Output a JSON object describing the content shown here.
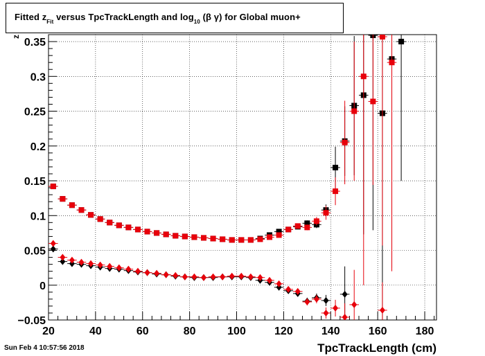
{
  "title": {
    "prefix": "Fitted  z",
    "sub1": "Fit",
    "middle": "  versus TpcTrackLength and log",
    "sub2": "10",
    "suffix": " (β γ) for Global muon+"
  },
  "timestamp": "Sun Feb  4 10:57:56 2018",
  "chart_data": {
    "type": "scatter",
    "xlabel": "TpcTrackLength (cm)",
    "ylabel": "z",
    "xlim": [
      20,
      185
    ],
    "ylim": [
      -0.05,
      0.36
    ],
    "xticks": [
      20,
      40,
      60,
      80,
      100,
      120,
      140,
      160,
      180
    ],
    "yticks": [
      -0.05,
      0,
      0.05,
      0.1,
      0.15,
      0.2,
      0.25,
      0.3,
      0.35
    ],
    "ytick_labels": [
      "−0.05",
      "0",
      "0.05",
      "0.1",
      "0.15",
      "0.2",
      "0.25",
      "0.3",
      "0.35"
    ],
    "grid": true,
    "series": [
      {
        "marker": "square",
        "color": "#000000",
        "x": [
          22,
          26,
          30,
          34,
          38,
          42,
          46,
          50,
          54,
          58,
          62,
          66,
          70,
          74,
          78,
          82,
          86,
          90,
          94,
          98,
          102,
          106,
          110,
          114,
          118,
          122,
          126,
          130,
          134,
          138,
          142,
          146,
          150,
          154,
          158,
          162,
          166,
          170
        ],
        "y": [
          0.142,
          0.124,
          0.115,
          0.108,
          0.101,
          0.095,
          0.09,
          0.086,
          0.083,
          0.08,
          0.077,
          0.075,
          0.073,
          0.071,
          0.07,
          0.069,
          0.068,
          0.067,
          0.066,
          0.065,
          0.065,
          0.065,
          0.067,
          0.072,
          0.077,
          0.08,
          0.084,
          0.089,
          0.087,
          0.108,
          0.169,
          0.207,
          0.258,
          0.273,
          0.359,
          0.247,
          0.325,
          0.35
        ],
        "err": [
          0.003,
          0.003,
          0.003,
          0.003,
          0.002,
          0.002,
          0.002,
          0.002,
          0.002,
          0.002,
          0.002,
          0.002,
          0.002,
          0.002,
          0.002,
          0.002,
          0.002,
          0.002,
          0.002,
          0.002,
          0.002,
          0.002,
          0.002,
          0.002,
          0.003,
          0.003,
          0.003,
          0.004,
          0.005,
          0.008,
          0.03,
          0.05,
          0.1,
          0.2,
          0.28,
          0.35,
          0.3,
          0.2
        ]
      },
      {
        "marker": "square",
        "color": "#e8000b",
        "x": [
          22,
          26,
          30,
          34,
          38,
          42,
          46,
          50,
          54,
          58,
          62,
          66,
          70,
          74,
          78,
          82,
          86,
          90,
          94,
          98,
          102,
          106,
          110,
          114,
          118,
          122,
          126,
          130,
          134,
          138,
          142,
          146,
          150,
          154,
          158,
          162,
          166
        ],
        "y": [
          0.142,
          0.124,
          0.115,
          0.108,
          0.101,
          0.095,
          0.09,
          0.086,
          0.083,
          0.08,
          0.077,
          0.075,
          0.073,
          0.071,
          0.07,
          0.069,
          0.068,
          0.067,
          0.066,
          0.065,
          0.065,
          0.065,
          0.066,
          0.069,
          0.072,
          0.08,
          0.085,
          0.083,
          0.092,
          0.104,
          0.135,
          0.205,
          0.25,
          0.3,
          0.264,
          0.357,
          0.32
        ],
        "err": [
          0.003,
          0.003,
          0.003,
          0.003,
          0.002,
          0.002,
          0.002,
          0.002,
          0.002,
          0.002,
          0.002,
          0.002,
          0.002,
          0.002,
          0.002,
          0.002,
          0.002,
          0.002,
          0.002,
          0.002,
          0.002,
          0.002,
          0.002,
          0.002,
          0.003,
          0.003,
          0.003,
          0.004,
          0.006,
          0.01,
          0.02,
          0.06,
          0.1,
          0.3,
          0.12,
          0.3,
          0.3
        ]
      },
      {
        "marker": "diamond",
        "color": "#000000",
        "x": [
          22,
          26,
          30,
          34,
          38,
          42,
          46,
          50,
          54,
          58,
          62,
          66,
          70,
          74,
          78,
          82,
          86,
          90,
          94,
          98,
          102,
          106,
          110,
          114,
          118,
          122,
          126,
          130,
          134,
          138,
          142,
          146,
          150,
          154,
          158,
          162,
          166
        ],
        "y": [
          0.052,
          0.034,
          0.031,
          0.03,
          0.028,
          0.026,
          0.024,
          0.023,
          0.021,
          0.019,
          0.018,
          0.016,
          0.015,
          0.013,
          0.012,
          0.011,
          0.011,
          0.011,
          0.012,
          0.012,
          0.012,
          0.011,
          0.007,
          0.004,
          -0.003,
          -0.008,
          -0.012,
          -0.023,
          -0.018,
          -0.022,
          null,
          -0.013,
          null,
          null,
          null,
          null,
          null
        ],
        "err": [
          0.003,
          0.002,
          0.002,
          0.002,
          0.002,
          0.002,
          0.002,
          0.002,
          0.002,
          0.002,
          0.002,
          0.002,
          0.002,
          0.002,
          0.002,
          0.002,
          0.002,
          0.002,
          0.002,
          0.002,
          0.002,
          0.002,
          0.002,
          0.002,
          0.003,
          0.003,
          0.004,
          0.005,
          0.006,
          0.008,
          0,
          0.04,
          0,
          0,
          0,
          0,
          0
        ]
      },
      {
        "marker": "diamond",
        "color": "#e8000b",
        "x": [
          22,
          26,
          30,
          34,
          38,
          42,
          46,
          50,
          54,
          58,
          62,
          66,
          70,
          74,
          78,
          82,
          86,
          90,
          94,
          98,
          102,
          106,
          110,
          114,
          118,
          122,
          126,
          130,
          134,
          138,
          142,
          146,
          150,
          154,
          158,
          162,
          166
        ],
        "y": [
          0.06,
          0.04,
          0.036,
          0.033,
          0.031,
          0.029,
          0.027,
          0.025,
          0.023,
          0.02,
          0.018,
          0.017,
          0.015,
          0.014,
          0.012,
          0.012,
          0.011,
          0.012,
          0.012,
          0.013,
          0.013,
          0.012,
          0.011,
          0.007,
          0.002,
          -0.006,
          -0.009,
          -0.024,
          -0.02,
          -0.04,
          -0.033,
          -0.046,
          -0.028,
          null,
          null,
          -0.036,
          null
        ],
        "err": [
          0.003,
          0.002,
          0.002,
          0.002,
          0.002,
          0.002,
          0.002,
          0.002,
          0.002,
          0.002,
          0.002,
          0.002,
          0.002,
          0.002,
          0.002,
          0.002,
          0.002,
          0.002,
          0.002,
          0.002,
          0.002,
          0.002,
          0.002,
          0.002,
          0.003,
          0.003,
          0.004,
          0.005,
          0.006,
          0.008,
          0.012,
          0.02,
          0.05,
          0,
          0,
          0.04,
          0
        ]
      }
    ]
  }
}
